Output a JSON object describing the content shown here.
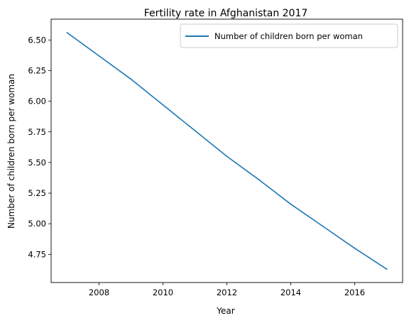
{
  "chart_data": {
    "type": "line",
    "title": "Fertility rate in Afghanistan 2017",
    "xlabel": "Year",
    "ylabel": "Number of children born per woman",
    "xlim": [
      2006.5,
      2017.5
    ],
    "ylim": [
      4.52,
      6.67
    ],
    "x_ticks": [
      2008,
      2010,
      2012,
      2014,
      2016
    ],
    "y_ticks": [
      4.75,
      5.0,
      5.25,
      5.5,
      5.75,
      6.0,
      6.25,
      6.5
    ],
    "x_tick_labels": [
      "2008",
      "2010",
      "2012",
      "2014",
      "2016"
    ],
    "y_tick_labels": [
      "4.75",
      "5.00",
      "5.25",
      "5.50",
      "5.75",
      "6.00",
      "6.25",
      "6.50"
    ],
    "grid": false,
    "legend_position": "top-right",
    "x": [
      2007,
      2008,
      2009,
      2010,
      2011,
      2012,
      2013,
      2014,
      2015,
      2016,
      2017
    ],
    "series": [
      {
        "name": "Number of children born per woman",
        "color": "#1f77b4",
        "values": [
          6.56,
          6.37,
          6.18,
          5.97,
          5.76,
          5.55,
          5.36,
          5.16,
          4.98,
          4.8,
          4.63
        ]
      }
    ]
  }
}
